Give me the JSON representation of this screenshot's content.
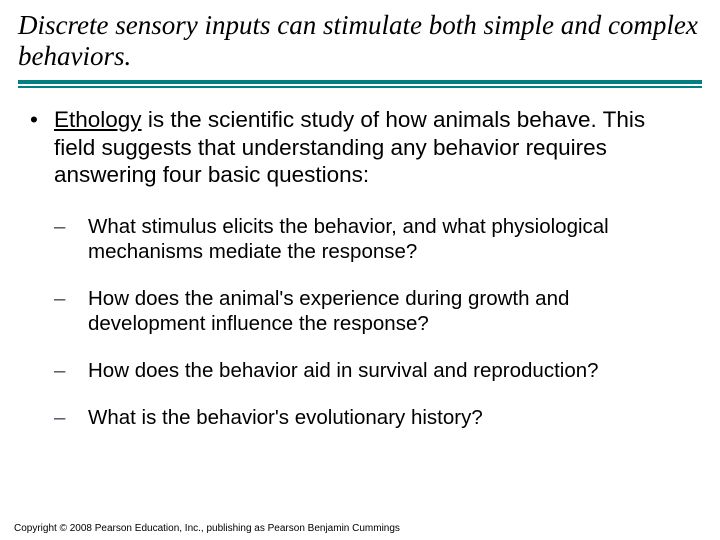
{
  "title": "Discrete sensory inputs can stimulate both simple and complex behaviors.",
  "accent_color": "#008080",
  "bullet": {
    "mark": "•",
    "term": "Ethology",
    "rest": " is the scientific study of how animals behave.  This field suggests that understanding any behavior requires answering four basic questions:"
  },
  "dash": "–",
  "subitems": [
    "What stimulus elicits the behavior, and what physiological mechanisms mediate the response?",
    "How does the animal's experience during growth and development influence the response?",
    "How does the behavior aid in survival and reproduction?",
    "What is the behavior's evolutionary history?"
  ],
  "copyright": "Copyright © 2008 Pearson Education, Inc., publishing as Pearson Benjamin Cummings"
}
